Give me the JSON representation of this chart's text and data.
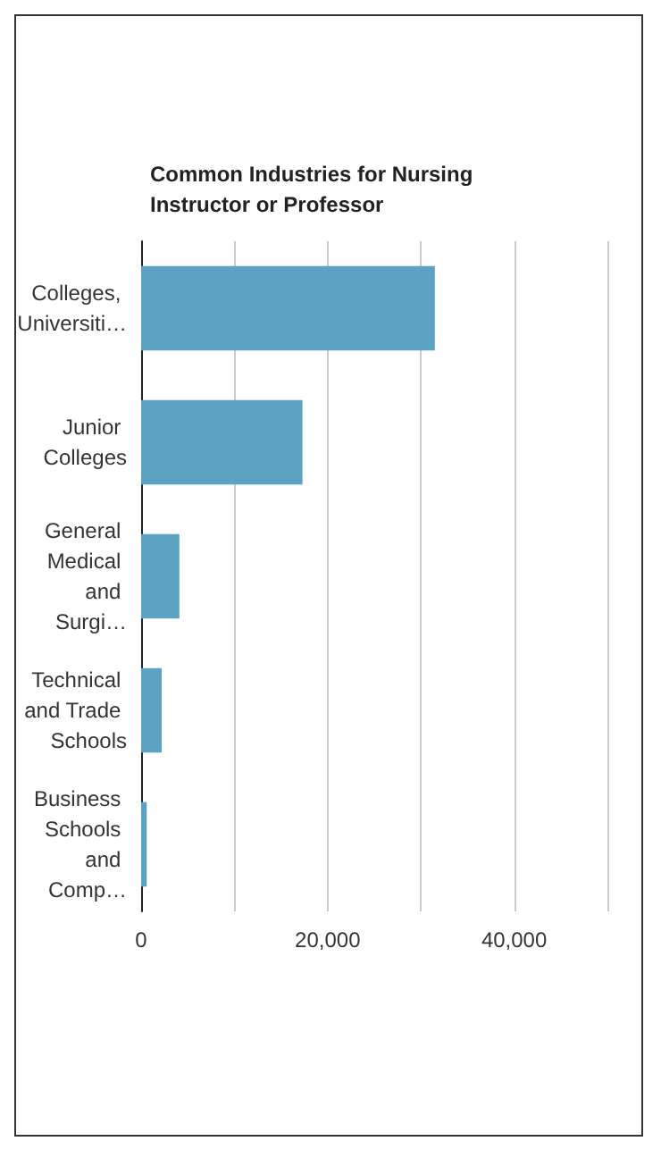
{
  "chart_data": {
    "type": "bar",
    "orientation": "horizontal",
    "title": "Common Industries for Nursing Instructor or Professor",
    "categories": [
      "Colleges, Universiti…",
      "Junior Colleges",
      "General Medical and Surgi…",
      "Technical and Trade Schools",
      "Business Schools and Comp…"
    ],
    "values": [
      31500,
      17300,
      4100,
      2200,
      600
    ],
    "color": "#5ba3c1",
    "xlim": [
      0,
      50000
    ],
    "xticks": [
      0,
      {
        "value": 10000,
        "label": null
      },
      {
        "value": 20000,
        "label": "20,000"
      },
      {
        "value": 30000,
        "label": null
      },
      {
        "value": 40000,
        "label": "40,000"
      },
      {
        "value": 50000,
        "label": null
      }
    ],
    "grid": "x"
  }
}
